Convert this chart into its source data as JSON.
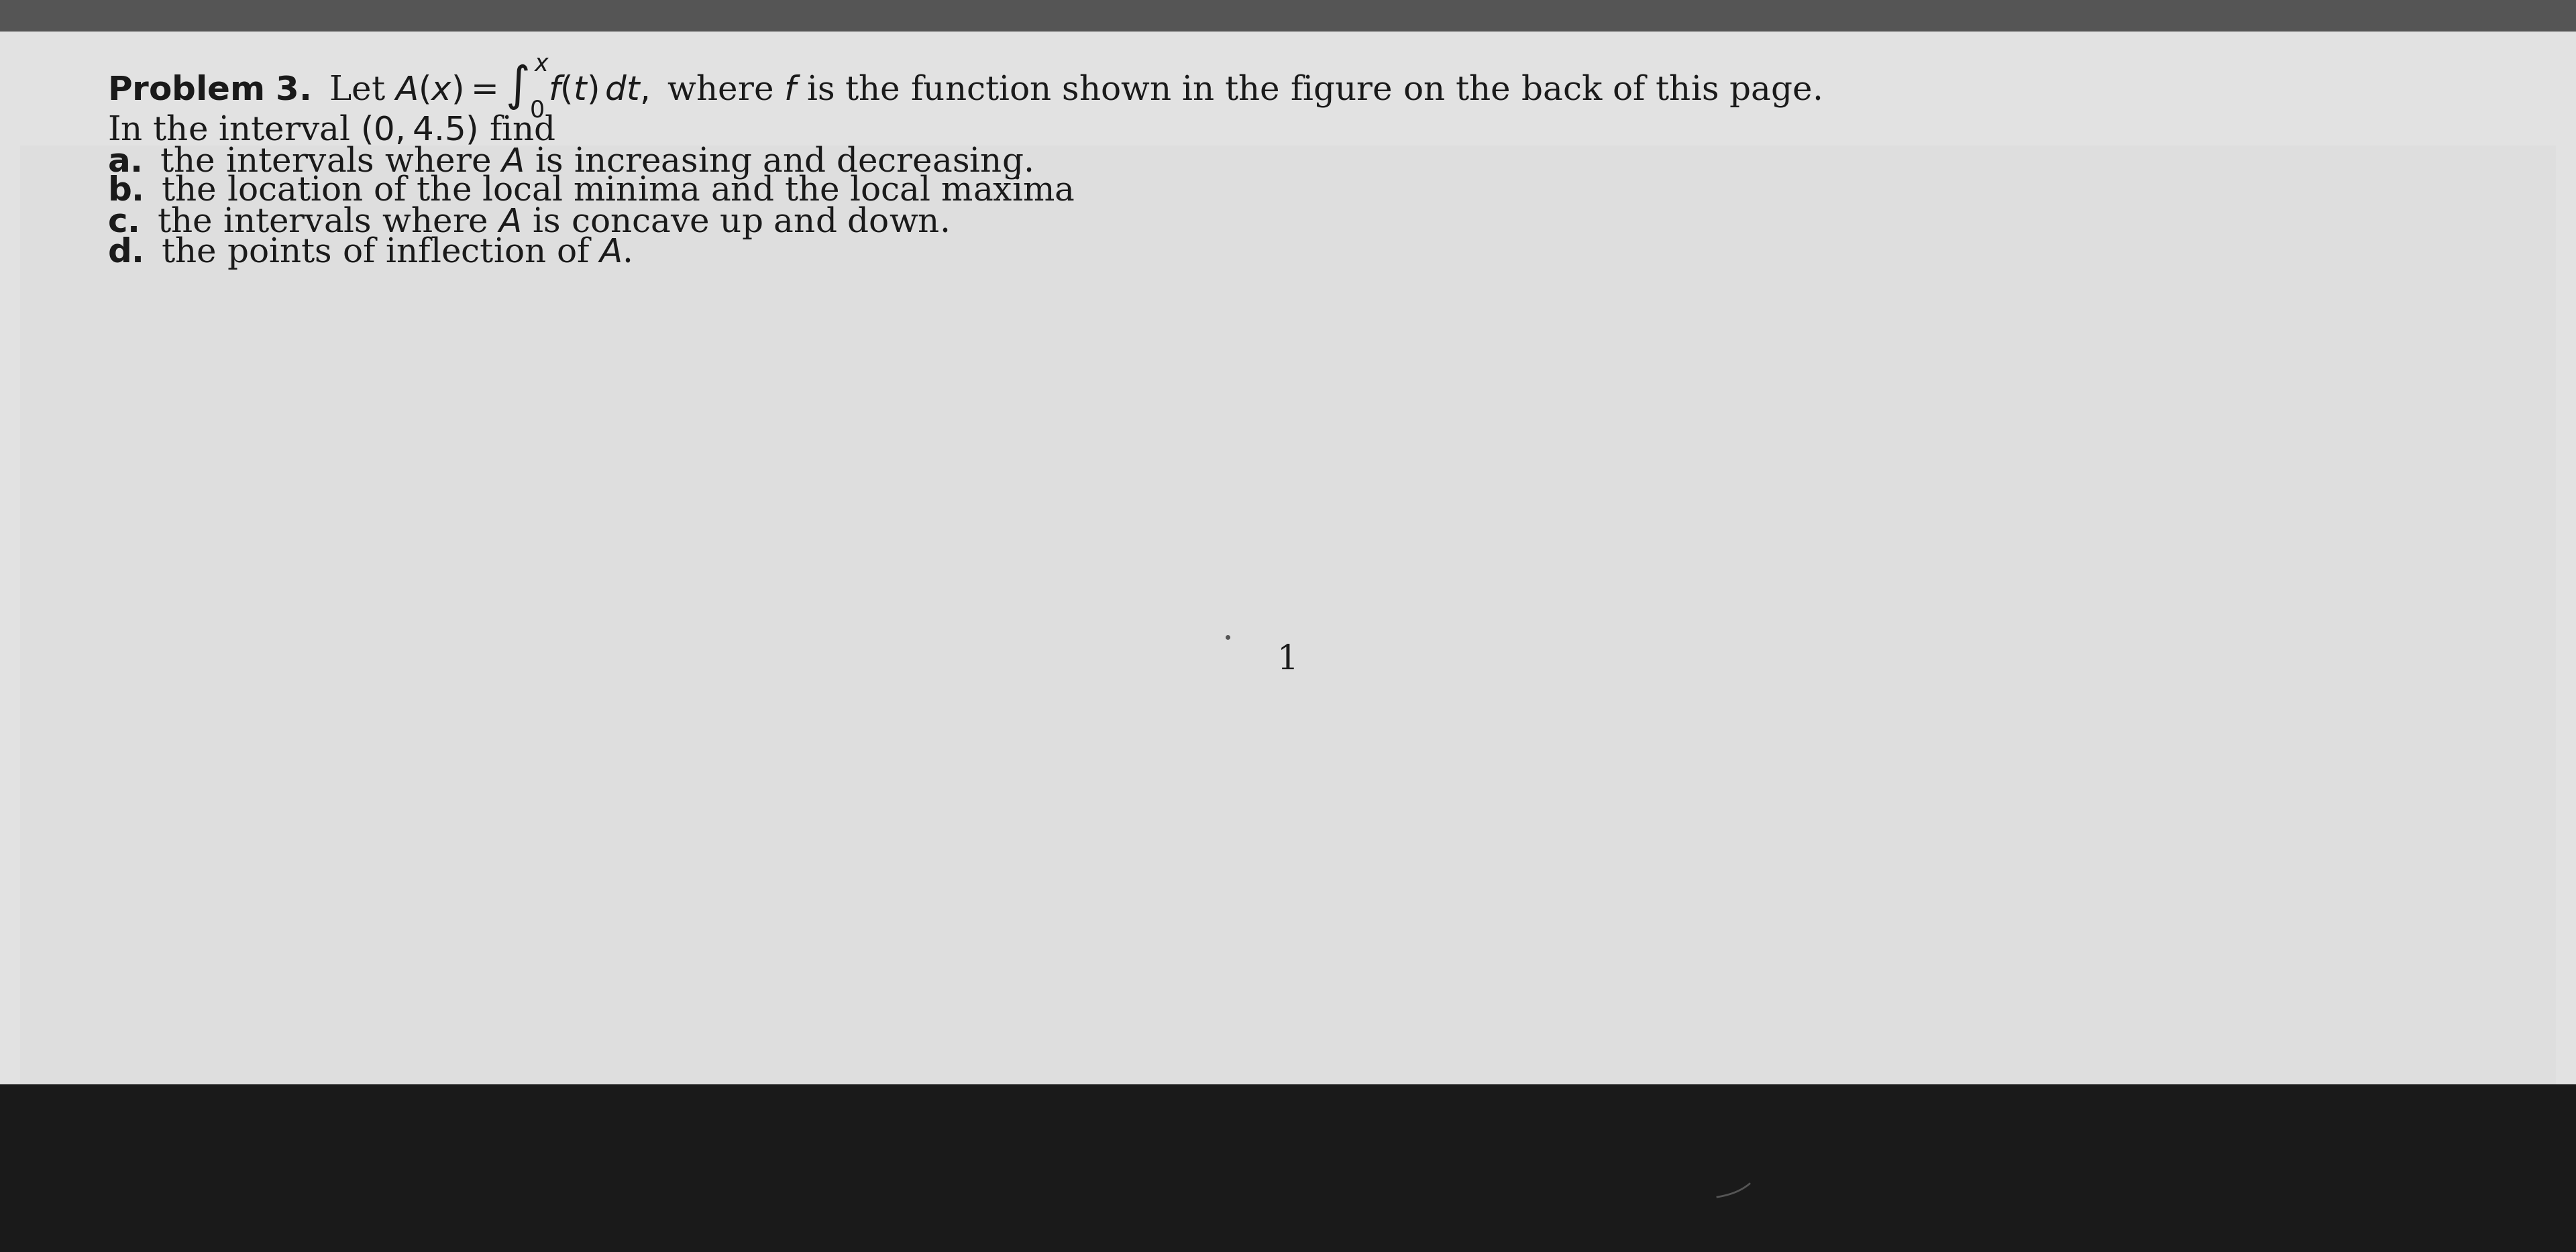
{
  "background_color": "#d8d8d8",
  "paper_color": "#e8e8e8",
  "text_color": "#1a1a1a",
  "title_bold": "Problem 3.",
  "title_normal": " Let ",
  "title_math": "A(x) = ∫₀ˣ f(t) dt,",
  "title_rest": " where f is the function shown in the figure on the back of this page.",
  "line0": "In the interval (0, 4.5) find",
  "line_a_bold": "a.",
  "line_a": " the intervals where A is increasing and decreasing.",
  "line_b_bold": "b.",
  "line_b": " the location of the local minima and the local maxima",
  "line_c_bold": "c.",
  "line_c": " the intervals where A is concave up and down.",
  "line_d_bold": "d.",
  "line_d": " the points of inflection of A.",
  "page_number": "1",
  "top_crop_indicator": "x"
}
